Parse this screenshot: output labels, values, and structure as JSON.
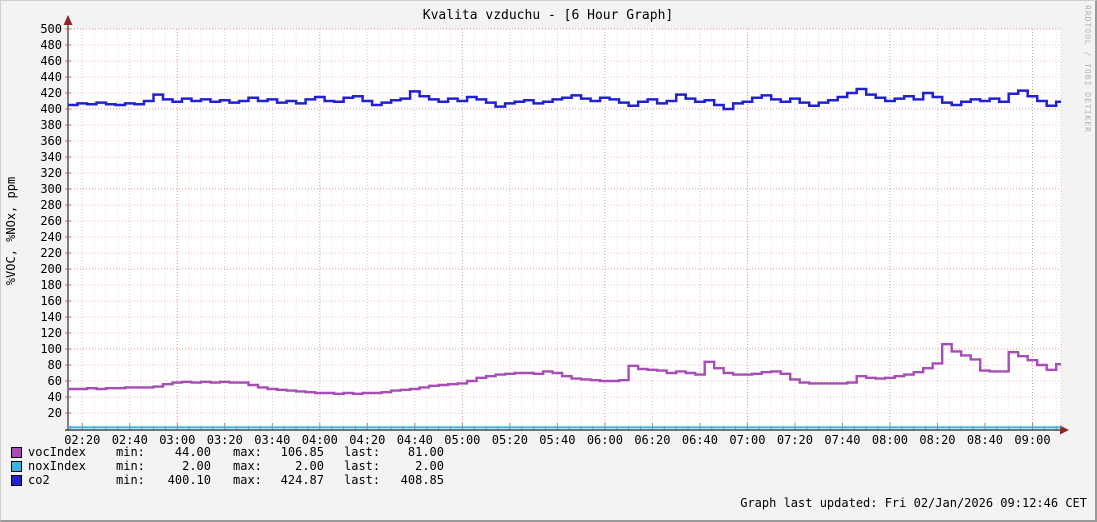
{
  "title": "Kvalita vzduchu - [6 Hour Graph]",
  "watermark": "RRDTOOL / TOBI OETIKER",
  "footer": {
    "updated": "Graph last updated: Fri 02/Jan/2026 09:12:46 CET"
  },
  "legend": {
    "min_label": "min:",
    "max_label": "max:",
    "last_label": "last:",
    "rows": [
      {
        "name": "vocIndex",
        "color": "#a74db6",
        "min": "44.00",
        "max": "106.85",
        "last": "81.00"
      },
      {
        "name": "noxIndex",
        "color": "#33b5e5",
        "min": "2.00",
        "max": "2.00",
        "last": "2.00"
      },
      {
        "name": "co2",
        "color": "#2121d3",
        "min": "400.10",
        "max": "424.87",
        "last": "408.85"
      }
    ]
  },
  "chart_data": {
    "type": "line",
    "title": "Kvalita vzduchu - [6 Hour Graph]",
    "xlabel": "",
    "ylabel": "%VOC, %NOx, ppm",
    "ylim": [
      0,
      500
    ],
    "y_ticks": [
      20,
      40,
      60,
      80,
      100,
      120,
      140,
      160,
      180,
      200,
      220,
      240,
      260,
      280,
      300,
      320,
      340,
      360,
      380,
      400,
      420,
      440,
      460,
      480,
      500
    ],
    "x_start_min": 134,
    "x_end_min": 552,
    "sample_step_min": 4,
    "x_ticks": [
      {
        "m": 140,
        "label": "02:20"
      },
      {
        "m": 160,
        "label": "02:40"
      },
      {
        "m": 180,
        "label": "03:00"
      },
      {
        "m": 200,
        "label": "03:20"
      },
      {
        "m": 220,
        "label": "03:40"
      },
      {
        "m": 240,
        "label": "04:00"
      },
      {
        "m": 260,
        "label": "04:20"
      },
      {
        "m": 280,
        "label": "04:40"
      },
      {
        "m": 300,
        "label": "05:00"
      },
      {
        "m": 320,
        "label": "05:20"
      },
      {
        "m": 340,
        "label": "05:40"
      },
      {
        "m": 360,
        "label": "06:00"
      },
      {
        "m": 380,
        "label": "06:20"
      },
      {
        "m": 400,
        "label": "06:40"
      },
      {
        "m": 420,
        "label": "07:00"
      },
      {
        "m": 440,
        "label": "07:20"
      },
      {
        "m": 460,
        "label": "07:40"
      },
      {
        "m": 480,
        "label": "08:00"
      },
      {
        "m": 500,
        "label": "08:20"
      },
      {
        "m": 520,
        "label": "08:40"
      },
      {
        "m": 540,
        "label": "09:00"
      }
    ],
    "grid": true,
    "legend_position": "bottom-left",
    "colors": {
      "grid_minor": "#f5dcdc",
      "grid_mid": "#f1bcbc",
      "grid_major": "#ea8f8f",
      "tick": "#d97474",
      "axis": "#4a4a4a",
      "arrow": "#8f2727",
      "plot_bg": "#ffffff",
      "outer_bg": "#f3f3f3"
    },
    "series": [
      {
        "name": "vocIndex",
        "color": "#a74db6",
        "width": 2.4,
        "min": 44.0,
        "max": 106.85,
        "last": 81.0,
        "values": [
          50,
          50,
          51,
          50,
          51,
          51,
          52,
          52,
          52,
          53,
          56,
          58,
          59,
          58,
          59,
          58,
          59,
          58,
          58,
          55,
          52,
          50,
          49,
          48,
          47,
          46,
          45,
          45,
          44,
          45,
          44,
          45,
          45,
          46,
          48,
          49,
          50,
          52,
          54,
          55,
          56,
          57,
          60,
          64,
          66,
          68,
          69,
          70,
          70,
          69,
          72,
          70,
          66,
          63,
          62,
          61,
          60,
          60,
          61,
          79,
          75,
          74,
          73,
          70,
          72,
          70,
          68,
          84,
          76,
          70,
          68,
          68,
          69,
          71,
          72,
          69,
          62,
          58,
          57,
          57,
          57,
          57,
          58,
          66,
          64,
          63,
          64,
          66,
          68,
          71,
          76,
          82,
          106,
          97,
          92,
          87,
          73,
          72,
          72,
          96,
          91,
          86,
          80,
          74,
          81
        ]
      },
      {
        "name": "noxIndex",
        "color": "#33b5e5",
        "width": 2,
        "min": 2.0,
        "max": 2.0,
        "last": 2.0,
        "constant": 2
      },
      {
        "name": "co2",
        "color": "#2121d3",
        "width": 2.5,
        "min": 400.1,
        "max": 424.87,
        "last": 408.85,
        "values": [
          405,
          407,
          406,
          408,
          406,
          405,
          407,
          406,
          410,
          418,
          412,
          409,
          413,
          410,
          412,
          409,
          411,
          408,
          410,
          414,
          410,
          412,
          408,
          410,
          407,
          412,
          415,
          410,
          409,
          414,
          416,
          410,
          405,
          408,
          411,
          413,
          422,
          416,
          412,
          409,
          413,
          410,
          415,
          412,
          408,
          403,
          407,
          409,
          411,
          407,
          409,
          412,
          414,
          417,
          413,
          410,
          414,
          412,
          408,
          404,
          409,
          412,
          407,
          410,
          418,
          413,
          409,
          411,
          405,
          400,
          407,
          409,
          414,
          417,
          412,
          409,
          413,
          408,
          404,
          408,
          411,
          415,
          420,
          425,
          418,
          414,
          410,
          413,
          416,
          412,
          420,
          415,
          408,
          405,
          409,
          412,
          410,
          413,
          409,
          419,
          423,
          416,
          410,
          404,
          409
        ]
      }
    ]
  }
}
